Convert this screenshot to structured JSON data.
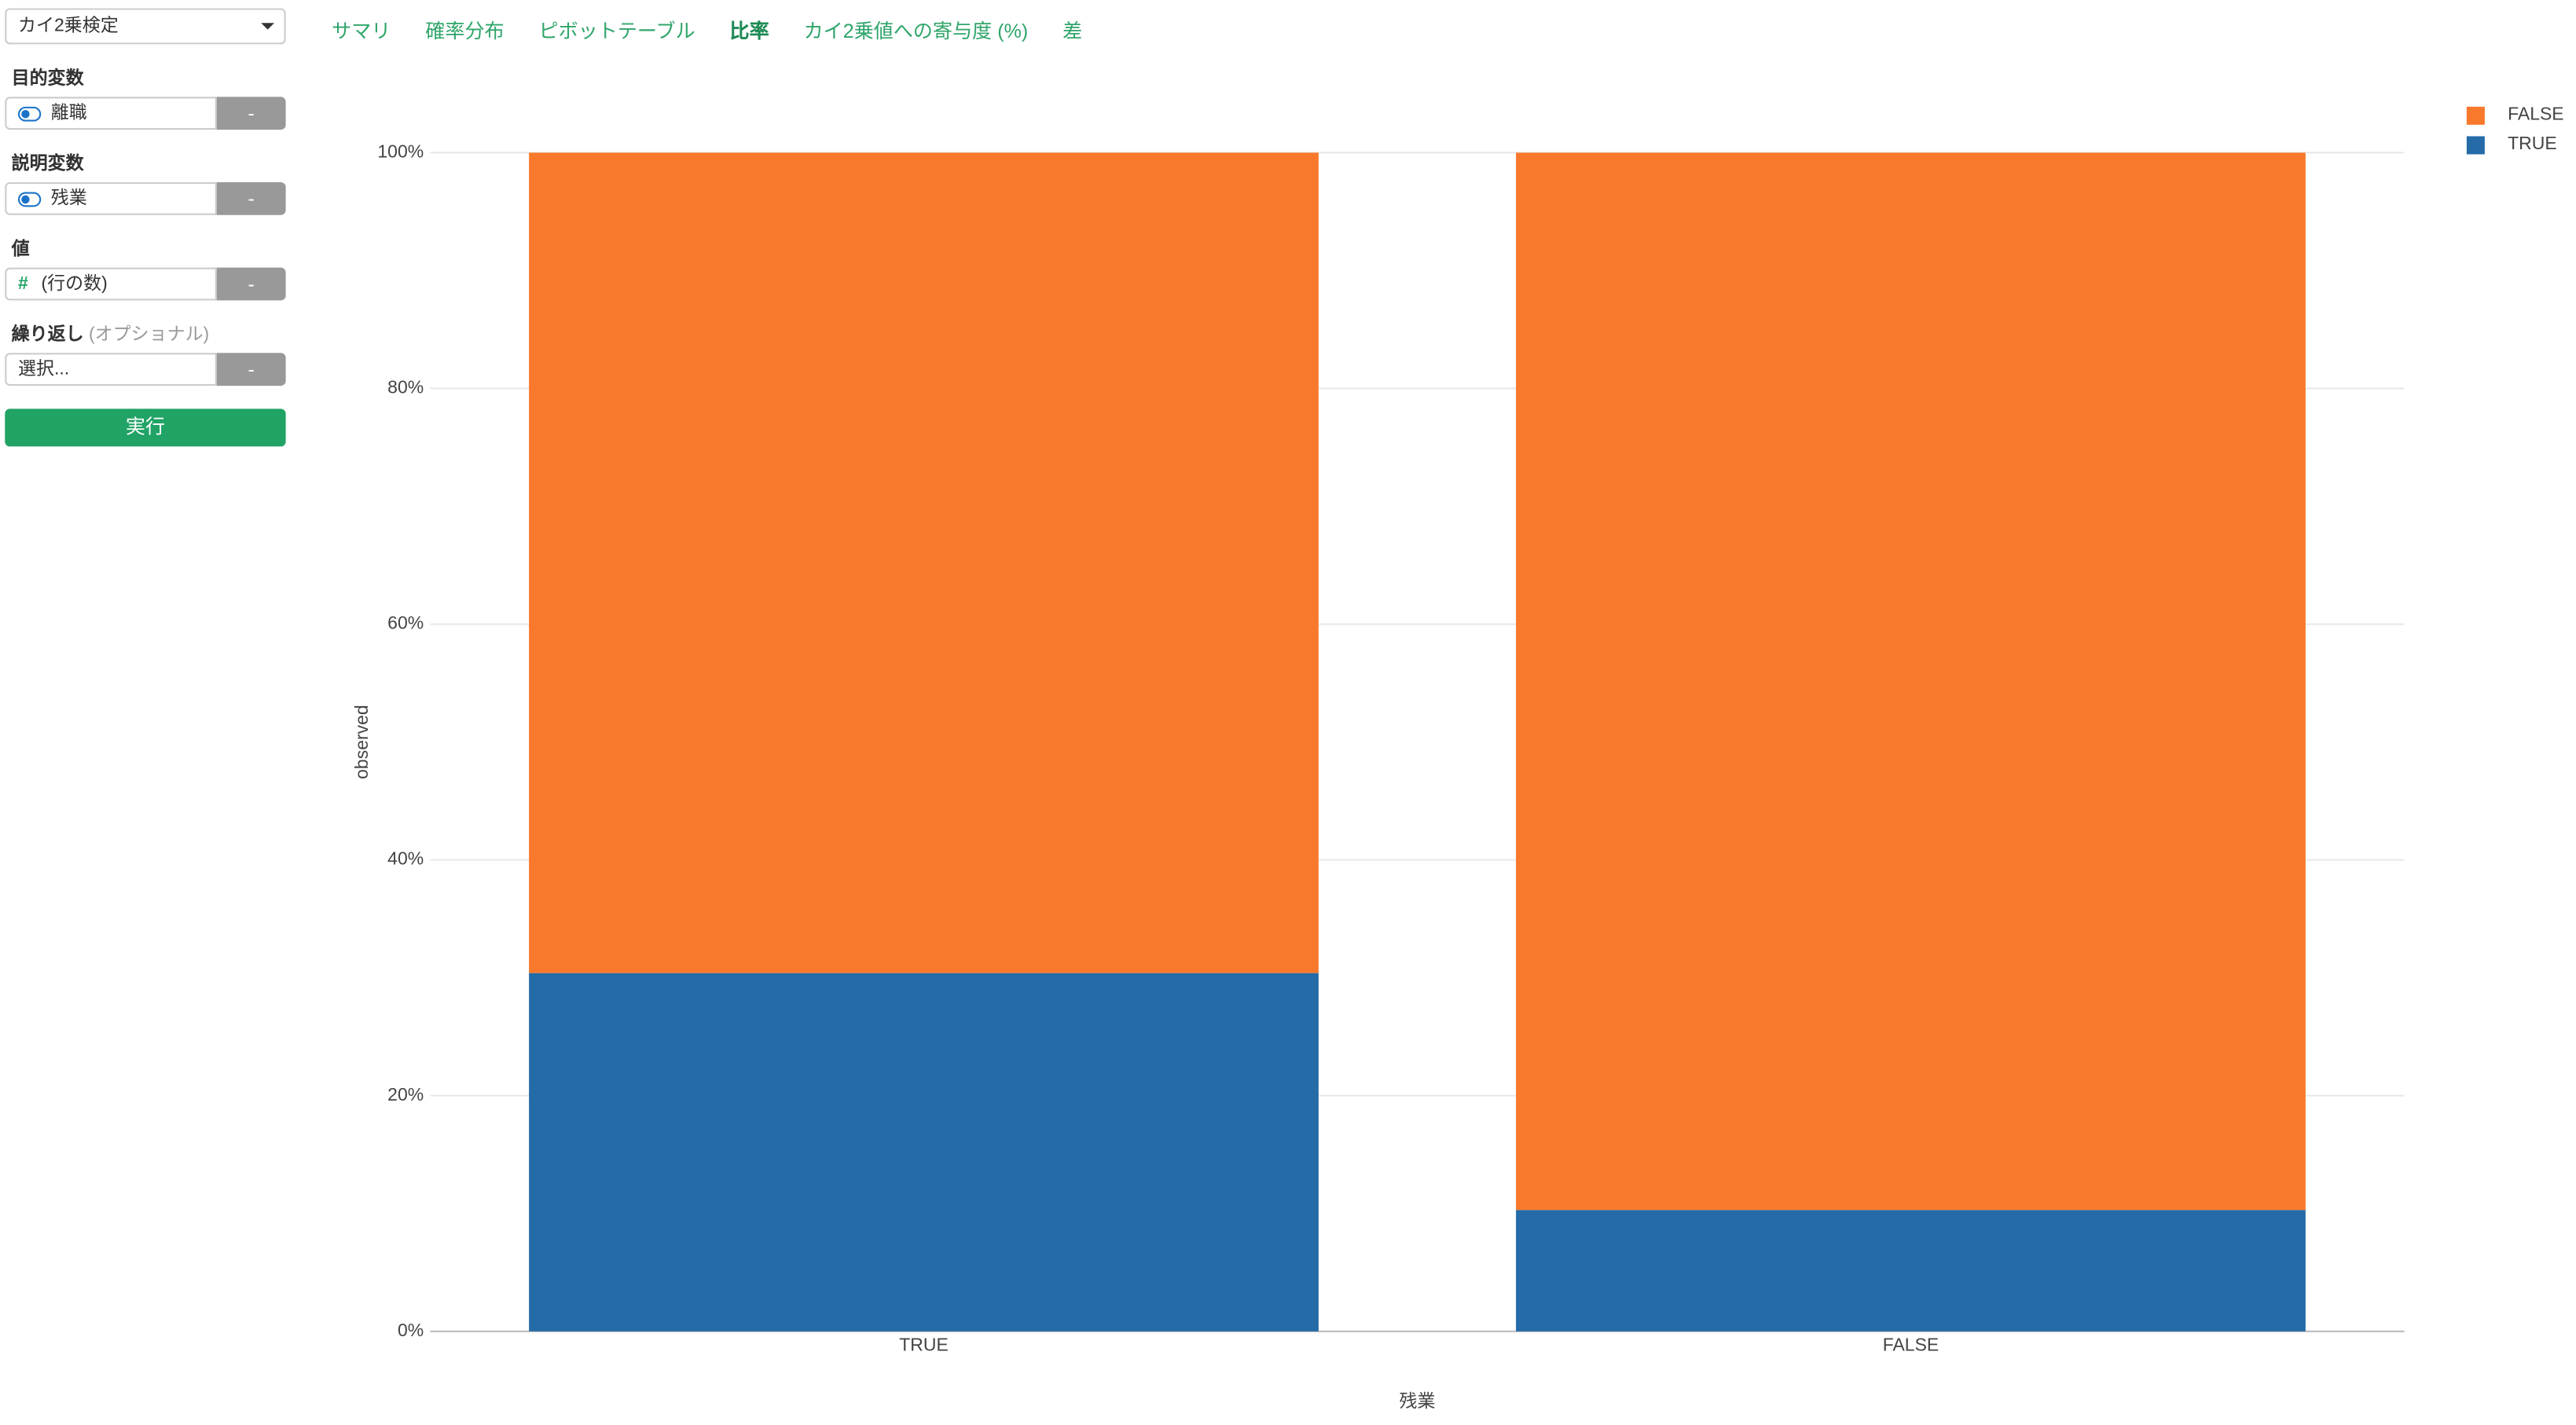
{
  "sidebar": {
    "analysis": "カイ2乗検定",
    "fields": [
      {
        "label": "目的変数",
        "value": "離職",
        "button": "-"
      },
      {
        "label": "説明変数",
        "value": "残業",
        "button": "-"
      },
      {
        "label": "値",
        "icon": "#",
        "value": "(行の数)",
        "button": "-"
      },
      {
        "label": "繰り返し",
        "note": "(オプショナル)",
        "value": "選択...",
        "button": "-"
      }
    ],
    "run": "実行"
  },
  "tabs": [
    "サマリ",
    "確率分布",
    "ピボットテーブル",
    "比率",
    "カイ2乗値への寄与度 (%)",
    "差"
  ],
  "chart_data": {
    "type": "stacked_bar",
    "x_label": "残業",
    "y_label": "observed",
    "categories": [
      "TRUE",
      "FALSE"
    ],
    "series": [
      {
        "name": "TRUE",
        "color": "#246ba8",
        "values": [
          30.4,
          10.3
        ]
      },
      {
        "name": "FALSE",
        "color": "#f8792b",
        "values": [
          69.6,
          89.7
        ]
      }
    ],
    "ylim": [
      0,
      100
    ],
    "yticks": [
      {
        "value": 0,
        "label": "0%"
      },
      {
        "value": 20,
        "label": "20%"
      },
      {
        "value": 40,
        "label": "40%"
      },
      {
        "value": 60,
        "label": "60%"
      },
      {
        "value": 80,
        "label": "80%"
      },
      {
        "value": 100,
        "label": "100%"
      }
    ],
    "grid": true,
    "legend": "top-right"
  }
}
